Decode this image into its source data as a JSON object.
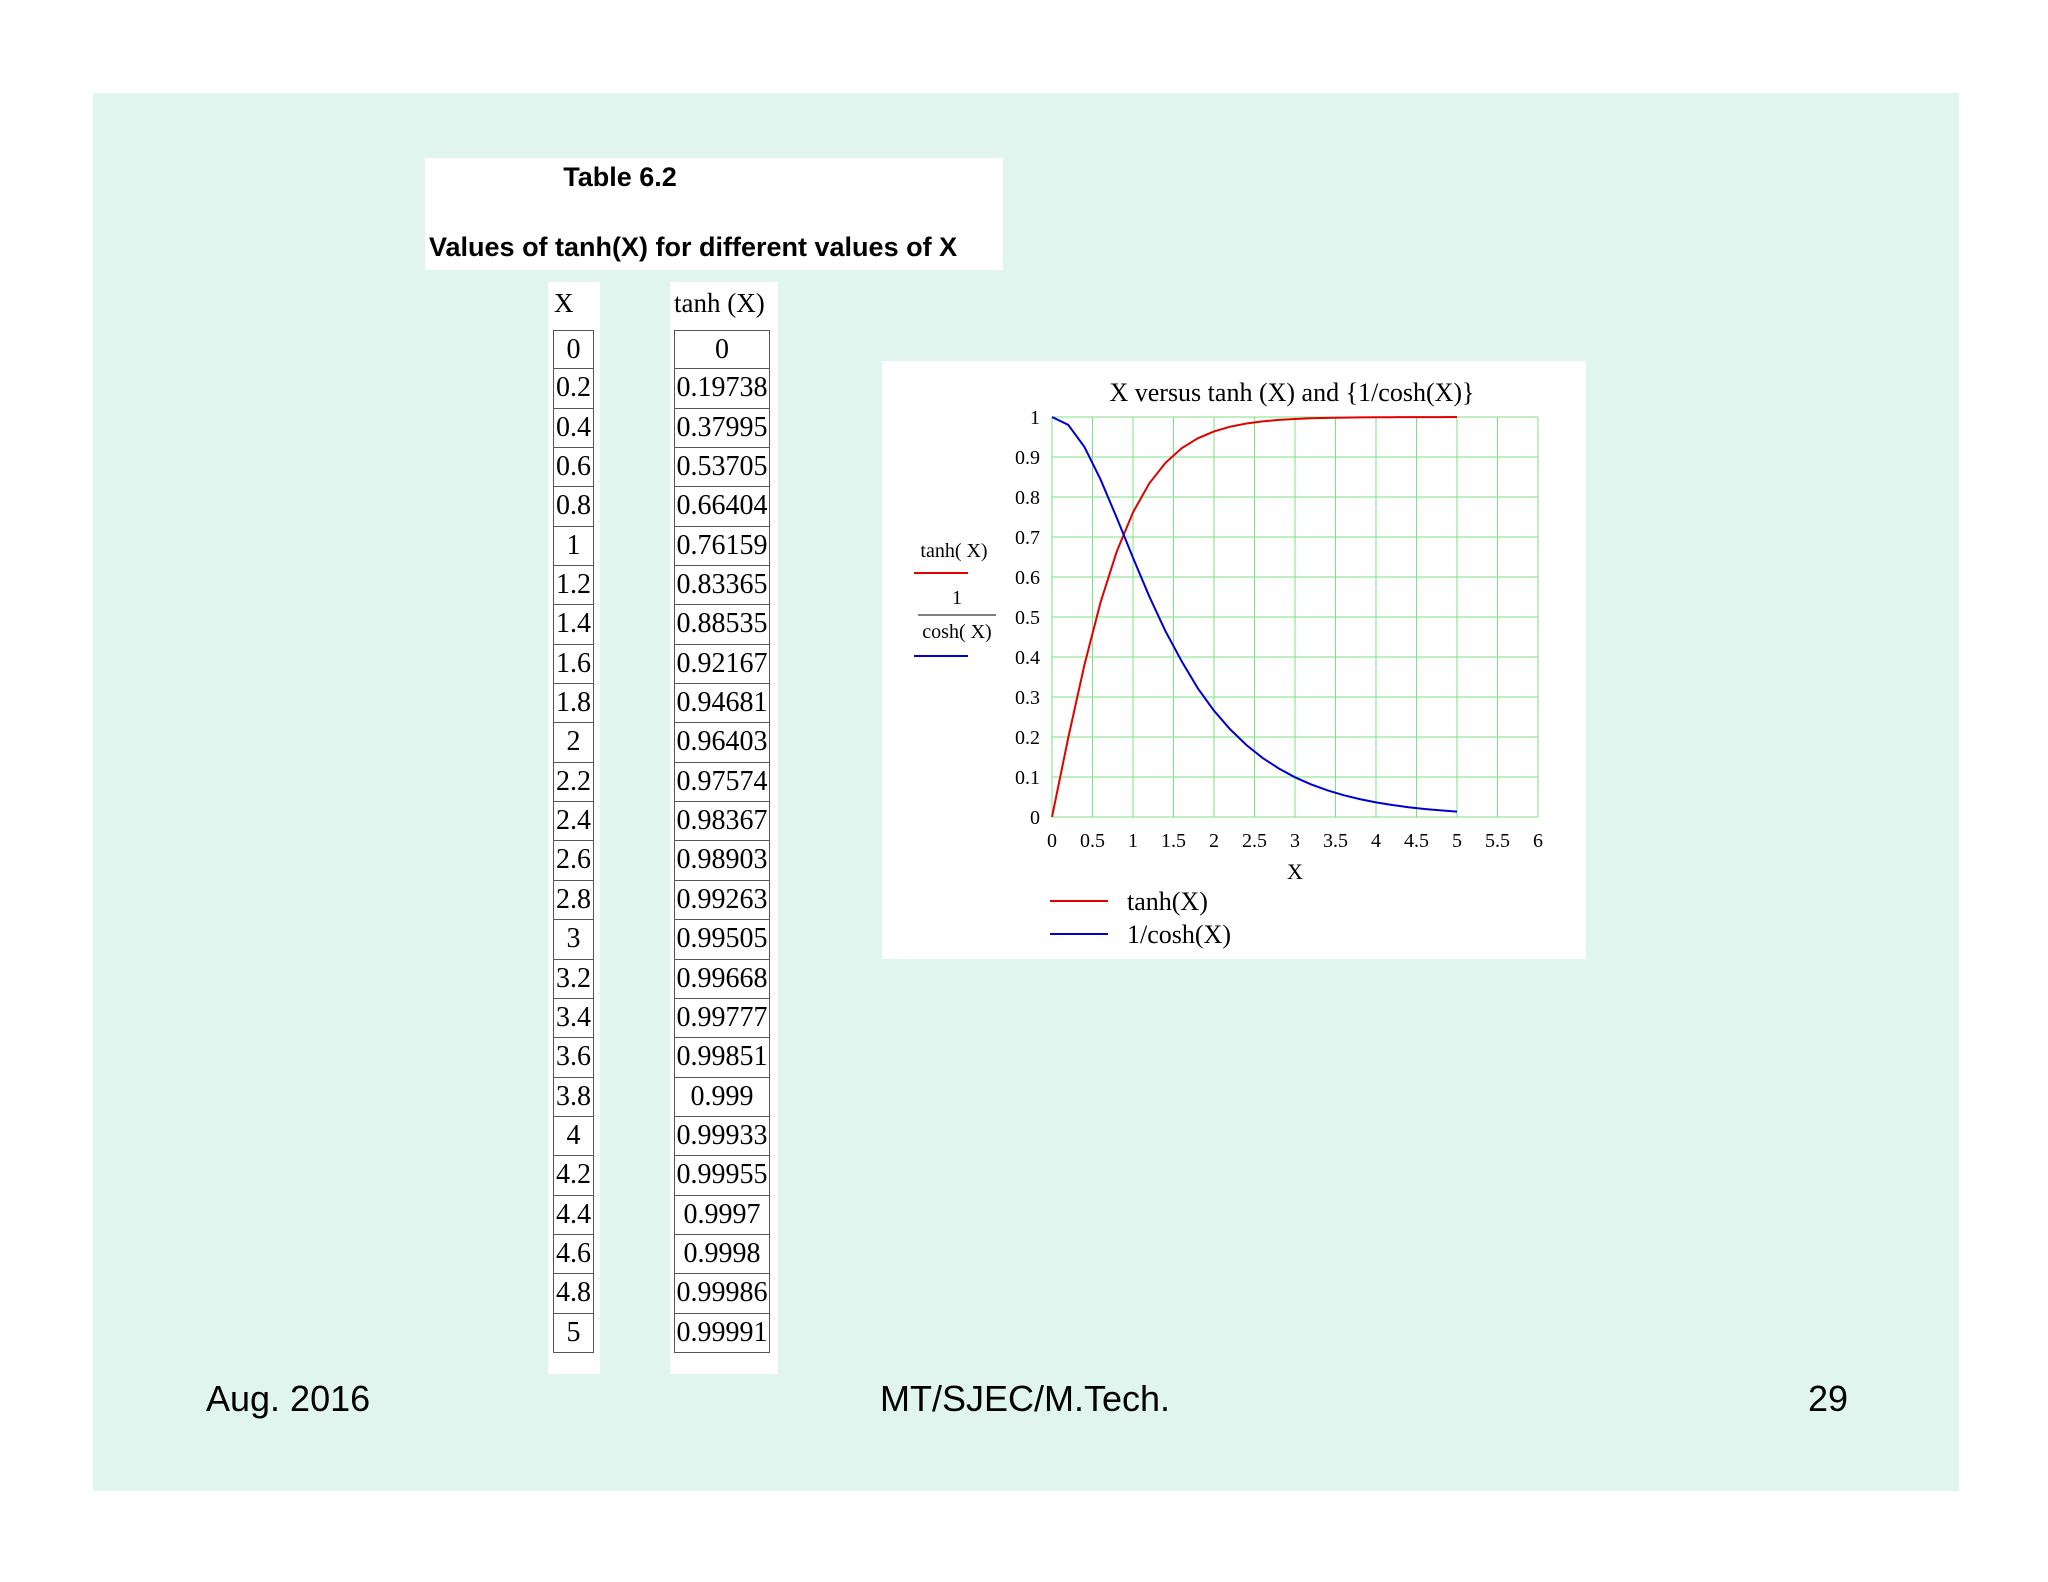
{
  "caption": {
    "title": "Table 6.2",
    "subtitle": "Values of tanh(X) for different values of X"
  },
  "table": {
    "col_x_header": "X",
    "col_tanh_header": "tanh (X)",
    "rows": [
      [
        "0",
        "0"
      ],
      [
        "0.2",
        "0.19738"
      ],
      [
        "0.4",
        "0.37995"
      ],
      [
        "0.6",
        "0.53705"
      ],
      [
        "0.8",
        "0.66404"
      ],
      [
        "1",
        "0.76159"
      ],
      [
        "1.2",
        "0.83365"
      ],
      [
        "1.4",
        "0.88535"
      ],
      [
        "1.6",
        "0.92167"
      ],
      [
        "1.8",
        "0.94681"
      ],
      [
        "2",
        "0.96403"
      ],
      [
        "2.2",
        "0.97574"
      ],
      [
        "2.4",
        "0.98367"
      ],
      [
        "2.6",
        "0.98903"
      ],
      [
        "2.8",
        "0.99263"
      ],
      [
        "3",
        "0.99505"
      ],
      [
        "3.2",
        "0.99668"
      ],
      [
        "3.4",
        "0.99777"
      ],
      [
        "3.6",
        "0.99851"
      ],
      [
        "3.8",
        "0.999"
      ],
      [
        "4",
        "0.99933"
      ],
      [
        "4.2",
        "0.99955"
      ],
      [
        "4.4",
        "0.9997"
      ],
      [
        "4.6",
        "0.9998"
      ],
      [
        "4.8",
        "0.99986"
      ],
      [
        "5",
        "0.99991"
      ]
    ]
  },
  "chart_data": {
    "type": "line",
    "title": "X versus tanh (X) and {1/cosh(X)}",
    "xlabel": "X",
    "ylabel_series1": "tanh( X)",
    "ylabel_series2_num": "1",
    "ylabel_series2_den": "cosh( X)",
    "xlim": [
      0,
      6
    ],
    "ylim": [
      0,
      1
    ],
    "grid": true,
    "legend": "bottom",
    "x_ticks": [
      "0",
      "0.5",
      "1",
      "1.5",
      "2",
      "2.5",
      "3",
      "3.5",
      "4",
      "4.5",
      "5",
      "5.5",
      "6"
    ],
    "y_ticks": [
      "0",
      "0.1",
      "0.2",
      "0.3",
      "0.4",
      "0.5",
      "0.6",
      "0.7",
      "0.8",
      "0.9",
      "1"
    ],
    "x": [
      0,
      0.2,
      0.4,
      0.6,
      0.8,
      1,
      1.2,
      1.4,
      1.6,
      1.8,
      2,
      2.2,
      2.4,
      2.6,
      2.8,
      3,
      3.2,
      3.4,
      3.6,
      3.8,
      4,
      4.2,
      4.4,
      4.6,
      4.8,
      5
    ],
    "series": [
      {
        "name": "tanh(X)",
        "color": "#e00000",
        "values": [
          0,
          0.19738,
          0.37995,
          0.53705,
          0.66404,
          0.76159,
          0.83365,
          0.88535,
          0.92167,
          0.94681,
          0.96403,
          0.97574,
          0.98367,
          0.98903,
          0.99263,
          0.99505,
          0.99668,
          0.99777,
          0.99851,
          0.999,
          0.99933,
          0.99955,
          0.9997,
          0.9998,
          0.99986,
          0.99991
        ]
      },
      {
        "name": "1/cosh(X)",
        "color": "#0000d0",
        "values": [
          1,
          0.98049,
          0.92527,
          0.84355,
          0.74776,
          0.64805,
          0.55203,
          0.46507,
          0.38963,
          0.32178,
          0.2658,
          0.21891,
          0.18004,
          0.14786,
          0.12133,
          0.09933,
          0.08139,
          0.06664,
          0.05455,
          0.04463,
          0.03662,
          0.02999,
          0.02456,
          0.0201,
          0.01646,
          0.01348
        ]
      }
    ],
    "grid_color": "#7fe07f"
  },
  "footer": {
    "date": "Aug. 2016",
    "center": "MT/SJEC/M.Tech.",
    "page": "29"
  }
}
